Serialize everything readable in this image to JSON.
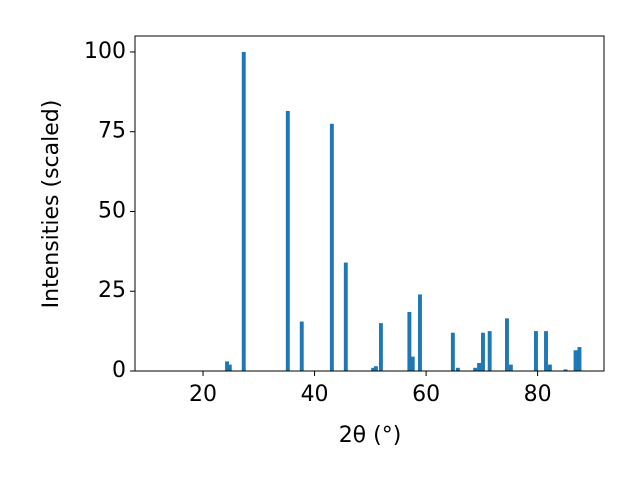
{
  "chart_data": {
    "type": "bar",
    "xlabel": "2θ (°)",
    "ylabel": "Intensities (scaled)",
    "x": [
      24.3,
      24.8,
      27.3,
      35.2,
      37.7,
      43.1,
      45.6,
      50.5,
      51.0,
      51.9,
      57.0,
      57.6,
      58.9,
      64.8,
      65.7,
      68.8,
      69.5,
      70.2,
      71.4,
      74.5,
      75.2,
      79.7,
      81.5,
      82.2,
      85.0,
      86.8,
      87.5
    ],
    "values": [
      3,
      2,
      100,
      81.5,
      15.5,
      77.5,
      34,
      1,
      1.5,
      15,
      18.5,
      4.5,
      24,
      12,
      1,
      1,
      2.5,
      12,
      12.5,
      16.5,
      2,
      12.5,
      12.5,
      2,
      0.5,
      6.5,
      7.5
    ],
    "color": "#1f77b4",
    "xlim": [
      7.8,
      91.9
    ],
    "xticks": [
      20,
      40,
      60,
      80
    ],
    "ylim": [
      0,
      105
    ],
    "yticks": [
      0,
      25,
      50,
      75,
      100
    ]
  }
}
